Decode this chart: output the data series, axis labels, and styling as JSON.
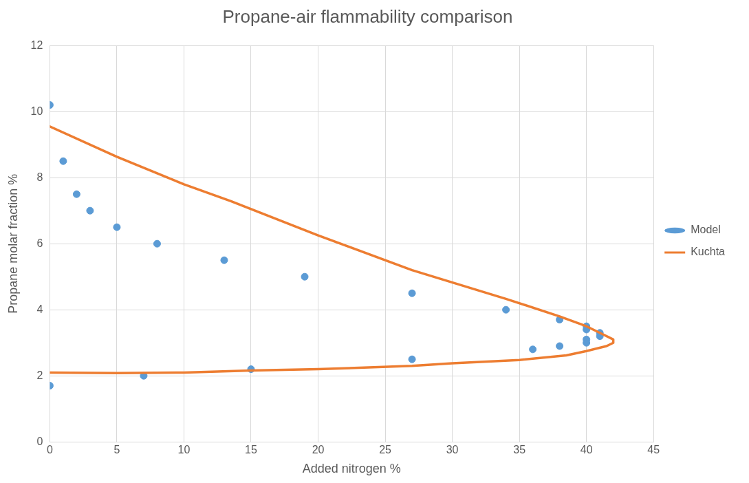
{
  "chart_data": {
    "type": "scatter",
    "title": "Propane-air flammability comparison",
    "xlabel": "Added nitrogen %",
    "ylabel": "Propane molar fraction %",
    "xlim": [
      0,
      45
    ],
    "xticks": [
      0,
      5,
      10,
      15,
      20,
      25,
      30,
      35,
      40,
      45
    ],
    "ylim": [
      0,
      12
    ],
    "yticks": [
      0,
      2,
      4,
      6,
      8,
      10,
      12
    ],
    "grid": true,
    "legend": "right",
    "series": [
      {
        "name": "Model",
        "marker": "circle",
        "color": "#5b9bd5",
        "x": [
          0,
          1,
          2,
          3,
          5,
          8,
          13,
          19,
          27,
          34,
          38,
          40,
          40,
          41,
          41,
          40,
          40,
          38,
          36,
          27,
          15,
          7,
          0
        ],
        "values": [
          10.2,
          8.5,
          7.5,
          7.0,
          6.5,
          6.0,
          5.5,
          5.0,
          4.5,
          4.0,
          3.7,
          3.5,
          3.4,
          3.3,
          3.2,
          3.1,
          3.0,
          2.9,
          2.8,
          2.5,
          2.2,
          2.0,
          1.7
        ]
      },
      {
        "name": "Kuchta",
        "type": "line",
        "marker": "none",
        "line_style": "solid",
        "color": "#ed7d31",
        "x": [
          0,
          5,
          10,
          13.5,
          20,
          27,
          34,
          38,
          40,
          41,
          42,
          42,
          41.5,
          40,
          38.5,
          35,
          30,
          27,
          20,
          15,
          10,
          5,
          0
        ],
        "values": [
          9.55,
          8.63,
          7.8,
          7.29,
          6.25,
          5.2,
          4.33,
          3.8,
          3.5,
          3.3,
          3.1,
          3.0,
          2.9,
          2.75,
          2.62,
          2.48,
          2.38,
          2.3,
          2.2,
          2.16,
          2.1,
          2.08,
          2.1
        ]
      }
    ]
  }
}
